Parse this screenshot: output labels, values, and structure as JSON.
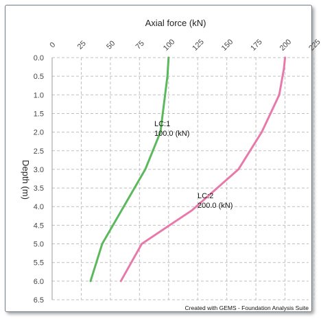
{
  "chart_data": {
    "type": "line",
    "xlabel": "Axial force (kN)",
    "ylabel": "Depth (m)",
    "xlim": [
      0,
      225
    ],
    "ylim": [
      0,
      6.5
    ],
    "y_inverted": true,
    "x_ticks": [
      "0",
      "25",
      "50",
      "75",
      "100",
      "125",
      "150",
      "175",
      "200",
      "225"
    ],
    "y_ticks": [
      "0.0",
      "0.5",
      "1.0",
      "1.5",
      "2.0",
      "2.5",
      "3.0",
      "3.5",
      "4.0",
      "4.5",
      "5.0",
      "5.5",
      "6.0",
      "6.5"
    ],
    "grid": true,
    "series": [
      {
        "name": "LC:1",
        "color": "#5cb85c",
        "points": [
          [
            100,
            0.0
          ],
          [
            99,
            0.5
          ],
          [
            97,
            1.0
          ],
          [
            93,
            2.0
          ],
          [
            80,
            3.0
          ],
          [
            43,
            5.0
          ],
          [
            33,
            6.0
          ]
        ],
        "annotation": [
          "LC:1",
          "100.0 (kN)"
        ]
      },
      {
        "name": "LC:2",
        "color": "#e87aab",
        "points": [
          [
            200,
            0.0
          ],
          [
            199,
            0.3
          ],
          [
            195,
            1.0
          ],
          [
            180,
            2.0
          ],
          [
            160,
            3.0
          ],
          [
            120,
            4.1
          ],
          [
            77,
            5.0
          ],
          [
            59,
            6.0
          ]
        ],
        "annotation": [
          "LC:2",
          "200.0 (kN)"
        ]
      }
    ],
    "credit": "Created with GEMS - Foundation Analysis Suite"
  }
}
